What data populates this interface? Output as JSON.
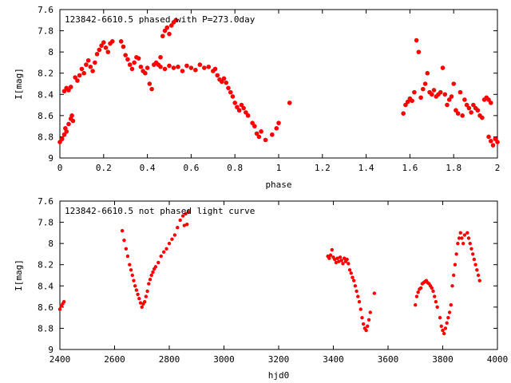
{
  "chart_data": [
    {
      "type": "scatter",
      "title": "123842-6610.5 phased with P=273.0day",
      "xlabel": "phase",
      "ylabel": "I[mag]",
      "xlim": [
        0,
        2
      ],
      "ylim": [
        9,
        7.6
      ],
      "y_inverted": true,
      "grid": false,
      "x_ticks": [
        0,
        0.2,
        0.4,
        0.6,
        0.8,
        1,
        1.2,
        1.4,
        1.6,
        1.8,
        2
      ],
      "x_tick_labels": [
        "0",
        "0.2",
        "0.4",
        "0.6",
        "0.8",
        "1",
        "1.2",
        "1.4",
        "1.6",
        "1.8",
        "2"
      ],
      "y_ticks": [
        7.6,
        7.8,
        8,
        8.2,
        8.4,
        8.6,
        8.8,
        9
      ],
      "y_tick_labels": [
        "7.6",
        "7.8",
        "8",
        "8.2",
        "8.4",
        "8.6",
        "8.8",
        "9"
      ],
      "marker_color": "#ff0000",
      "series": [
        {
          "points": [
            [
              0.0,
              8.85
            ],
            [
              0.01,
              8.82
            ],
            [
              0.02,
              8.78
            ],
            [
              0.025,
              8.72
            ],
            [
              0.03,
              8.75
            ],
            [
              0.04,
              8.68
            ],
            [
              0.05,
              8.63
            ],
            [
              0.055,
              8.6
            ],
            [
              0.06,
              8.65
            ],
            [
              0.02,
              8.37
            ],
            [
              0.03,
              8.34
            ],
            [
              0.04,
              8.36
            ],
            [
              0.05,
              8.33
            ],
            [
              0.07,
              8.24
            ],
            [
              0.08,
              8.27
            ],
            [
              0.09,
              8.22
            ],
            [
              0.1,
              8.16
            ],
            [
              0.11,
              8.2
            ],
            [
              0.12,
              8.12
            ],
            [
              0.13,
              8.08
            ],
            [
              0.14,
              8.14
            ],
            [
              0.15,
              8.18
            ],
            [
              0.16,
              8.1
            ],
            [
              0.17,
              8.02
            ],
            [
              0.18,
              7.98
            ],
            [
              0.19,
              7.94
            ],
            [
              0.2,
              7.91
            ],
            [
              0.21,
              7.96
            ],
            [
              0.22,
              8.0
            ],
            [
              0.23,
              7.92
            ],
            [
              0.24,
              7.9
            ],
            [
              0.28,
              7.9
            ],
            [
              0.29,
              7.95
            ],
            [
              0.3,
              8.03
            ],
            [
              0.31,
              8.07
            ],
            [
              0.32,
              8.12
            ],
            [
              0.33,
              8.16
            ],
            [
              0.34,
              8.1
            ],
            [
              0.35,
              8.05
            ],
            [
              0.36,
              8.06
            ],
            [
              0.37,
              8.14
            ],
            [
              0.38,
              8.18
            ],
            [
              0.39,
              8.2
            ],
            [
              0.4,
              8.15
            ],
            [
              0.41,
              8.3
            ],
            [
              0.42,
              8.35
            ],
            [
              0.43,
              8.12
            ],
            [
              0.44,
              8.1
            ],
            [
              0.45,
              8.12
            ],
            [
              0.46,
              8.05
            ],
            [
              0.47,
              7.85
            ],
            [
              0.48,
              7.8
            ],
            [
              0.49,
              7.77
            ],
            [
              0.5,
              7.83
            ],
            [
              0.51,
              7.75
            ],
            [
              0.52,
              7.72
            ],
            [
              0.53,
              7.7
            ],
            [
              0.46,
              8.14
            ],
            [
              0.48,
              8.16
            ],
            [
              0.5,
              8.13
            ],
            [
              0.52,
              8.15
            ],
            [
              0.54,
              8.14
            ],
            [
              0.56,
              8.18
            ],
            [
              0.58,
              8.13
            ],
            [
              0.6,
              8.15
            ],
            [
              0.62,
              8.17
            ],
            [
              0.64,
              8.12
            ],
            [
              0.66,
              8.15
            ],
            [
              0.68,
              8.14
            ],
            [
              0.7,
              8.18
            ],
            [
              0.71,
              8.16
            ],
            [
              0.72,
              8.22
            ],
            [
              0.73,
              8.26
            ],
            [
              0.74,
              8.28
            ],
            [
              0.75,
              8.25
            ],
            [
              0.76,
              8.29
            ],
            [
              0.77,
              8.34
            ],
            [
              0.78,
              8.38
            ],
            [
              0.79,
              8.42
            ],
            [
              0.8,
              8.48
            ],
            [
              0.81,
              8.52
            ],
            [
              0.82,
              8.55
            ],
            [
              0.83,
              8.5
            ],
            [
              0.84,
              8.53
            ],
            [
              0.85,
              8.57
            ],
            [
              0.86,
              8.6
            ],
            [
              0.88,
              8.67
            ],
            [
              0.89,
              8.7
            ],
            [
              0.9,
              8.77
            ],
            [
              0.91,
              8.8
            ],
            [
              0.92,
              8.75
            ],
            [
              0.94,
              8.83
            ],
            [
              0.97,
              8.78
            ],
            [
              0.99,
              8.72
            ],
            [
              1.0,
              8.67
            ],
            [
              1.05,
              8.48
            ],
            [
              1.57,
              8.58
            ],
            [
              1.58,
              8.5
            ],
            [
              1.59,
              8.47
            ],
            [
              1.6,
              8.44
            ],
            [
              1.61,
              8.46
            ],
            [
              1.62,
              8.38
            ],
            [
              1.63,
              7.89
            ],
            [
              1.64,
              8.0
            ],
            [
              1.65,
              8.43
            ],
            [
              1.66,
              8.35
            ],
            [
              1.67,
              8.3
            ],
            [
              1.68,
              8.2
            ],
            [
              1.69,
              8.38
            ],
            [
              1.7,
              8.4
            ],
            [
              1.71,
              8.36
            ],
            [
              1.72,
              8.42
            ],
            [
              1.73,
              8.4
            ],
            [
              1.74,
              8.38
            ],
            [
              1.75,
              8.15
            ],
            [
              1.76,
              8.4
            ],
            [
              1.77,
              8.5
            ],
            [
              1.78,
              8.45
            ],
            [
              1.79,
              8.42
            ],
            [
              1.8,
              8.3
            ],
            [
              1.81,
              8.55
            ],
            [
              1.82,
              8.58
            ],
            [
              1.83,
              8.38
            ],
            [
              1.84,
              8.6
            ],
            [
              1.85,
              8.45
            ],
            [
              1.86,
              8.5
            ],
            [
              1.87,
              8.53
            ],
            [
              1.88,
              8.57
            ],
            [
              1.89,
              8.5
            ],
            [
              1.9,
              8.53
            ],
            [
              1.91,
              8.55
            ],
            [
              1.92,
              8.6
            ],
            [
              1.93,
              8.62
            ],
            [
              1.94,
              8.45
            ],
            [
              1.95,
              8.43
            ],
            [
              1.96,
              8.45
            ],
            [
              1.97,
              8.48
            ],
            [
              1.96,
              8.8
            ],
            [
              1.97,
              8.84
            ],
            [
              1.98,
              8.88
            ],
            [
              1.99,
              8.82
            ],
            [
              2.0,
              8.85
            ]
          ]
        }
      ]
    },
    {
      "type": "scatter",
      "title": "123842-6610.5 not phased light curve",
      "xlabel": "hjd0",
      "ylabel": "I[mag]",
      "xlim": [
        2400,
        4000
      ],
      "ylim": [
        9,
        7.6
      ],
      "y_inverted": true,
      "grid": false,
      "x_ticks": [
        2400,
        2600,
        2800,
        3000,
        3200,
        3400,
        3600,
        3800,
        4000
      ],
      "x_tick_labels": [
        "2400",
        "2600",
        "2800",
        "3000",
        "3200",
        "3400",
        "3600",
        "3800",
        "4000"
      ],
      "y_ticks": [
        7.6,
        7.8,
        8,
        8.2,
        8.4,
        8.6,
        8.8,
        9
      ],
      "y_tick_labels": [
        "7.6",
        "7.8",
        "8",
        "8.2",
        "8.4",
        "8.6",
        "8.8",
        "9"
      ],
      "marker_color": "#ff0000",
      "series": [
        {
          "points": [
            [
              2400,
              8.62
            ],
            [
              2405,
              8.59
            ],
            [
              2410,
              8.57
            ],
            [
              2415,
              8.55
            ],
            [
              2628,
              7.88
            ],
            [
              2635,
              7.97
            ],
            [
              2642,
              8.05
            ],
            [
              2648,
              8.12
            ],
            [
              2655,
              8.2
            ],
            [
              2660,
              8.25
            ],
            [
              2665,
              8.3
            ],
            [
              2670,
              8.35
            ],
            [
              2675,
              8.4
            ],
            [
              2680,
              8.44
            ],
            [
              2685,
              8.48
            ],
            [
              2690,
              8.52
            ],
            [
              2695,
              8.56
            ],
            [
              2700,
              8.6
            ],
            [
              2705,
              8.57
            ],
            [
              2710,
              8.55
            ],
            [
              2715,
              8.5
            ],
            [
              2720,
              8.45
            ],
            [
              2725,
              8.38
            ],
            [
              2730,
              8.34
            ],
            [
              2735,
              8.3
            ],
            [
              2740,
              8.27
            ],
            [
              2745,
              8.24
            ],
            [
              2750,
              8.22
            ],
            [
              2760,
              8.18
            ],
            [
              2770,
              8.12
            ],
            [
              2780,
              8.08
            ],
            [
              2790,
              8.05
            ],
            [
              2800,
              8.0
            ],
            [
              2810,
              7.96
            ],
            [
              2820,
              7.92
            ],
            [
              2830,
              7.85
            ],
            [
              2840,
              7.78
            ],
            [
              2850,
              7.74
            ],
            [
              2860,
              7.72
            ],
            [
              2870,
              7.7
            ],
            [
              2855,
              7.83
            ],
            [
              2865,
              7.82
            ],
            [
              3380,
              8.12
            ],
            [
              3385,
              8.14
            ],
            [
              3390,
              8.11
            ],
            [
              3395,
              8.06
            ],
            [
              3400,
              8.13
            ],
            [
              3405,
              8.15
            ],
            [
              3410,
              8.18
            ],
            [
              3415,
              8.14
            ],
            [
              3420,
              8.17
            ],
            [
              3425,
              8.13
            ],
            [
              3430,
              8.16
            ],
            [
              3435,
              8.19
            ],
            [
              3440,
              8.14
            ],
            [
              3445,
              8.17
            ],
            [
              3450,
              8.15
            ],
            [
              3455,
              8.19
            ],
            [
              3460,
              8.25
            ],
            [
              3465,
              8.28
            ],
            [
              3470,
              8.32
            ],
            [
              3475,
              8.35
            ],
            [
              3480,
              8.4
            ],
            [
              3485,
              8.45
            ],
            [
              3490,
              8.5
            ],
            [
              3495,
              8.55
            ],
            [
              3500,
              8.62
            ],
            [
              3505,
              8.7
            ],
            [
              3510,
              8.76
            ],
            [
              3515,
              8.8
            ],
            [
              3520,
              8.82
            ],
            [
              3525,
              8.78
            ],
            [
              3530,
              8.72
            ],
            [
              3535,
              8.65
            ],
            [
              3550,
              8.47
            ],
            [
              3700,
              8.58
            ],
            [
              3705,
              8.5
            ],
            [
              3710,
              8.46
            ],
            [
              3715,
              8.43
            ],
            [
              3720,
              8.42
            ],
            [
              3725,
              8.38
            ],
            [
              3730,
              8.37
            ],
            [
              3735,
              8.36
            ],
            [
              3740,
              8.35
            ],
            [
              3745,
              8.37
            ],
            [
              3750,
              8.38
            ],
            [
              3755,
              8.4
            ],
            [
              3760,
              8.42
            ],
            [
              3765,
              8.45
            ],
            [
              3770,
              8.5
            ],
            [
              3775,
              8.55
            ],
            [
              3780,
              8.6
            ],
            [
              3790,
              8.7
            ],
            [
              3795,
              8.78
            ],
            [
              3800,
              8.82
            ],
            [
              3805,
              8.85
            ],
            [
              3810,
              8.8
            ],
            [
              3815,
              8.75
            ],
            [
              3820,
              8.7
            ],
            [
              3825,
              8.65
            ],
            [
              3830,
              8.58
            ],
            [
              3835,
              8.4
            ],
            [
              3840,
              8.3
            ],
            [
              3845,
              8.2
            ],
            [
              3850,
              8.1
            ],
            [
              3855,
              8.0
            ],
            [
              3860,
              7.95
            ],
            [
              3865,
              7.9
            ],
            [
              3870,
              7.95
            ],
            [
              3875,
              8.0
            ],
            [
              3880,
              7.92
            ],
            [
              3890,
              7.9
            ],
            [
              3895,
              7.95
            ],
            [
              3900,
              8.0
            ],
            [
              3905,
              8.05
            ],
            [
              3910,
              8.1
            ],
            [
              3915,
              8.15
            ],
            [
              3920,
              8.2
            ],
            [
              3925,
              8.25
            ],
            [
              3930,
              8.3
            ],
            [
              3935,
              8.35
            ]
          ]
        }
      ]
    }
  ]
}
